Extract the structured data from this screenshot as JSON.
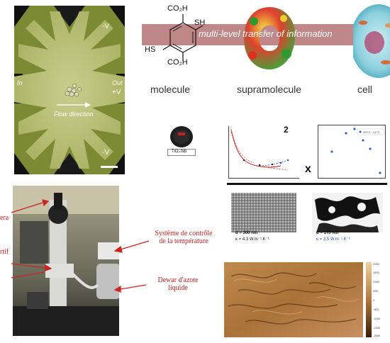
{
  "chip": {
    "label_in": "In",
    "label_out": "Out",
    "label_flow": "Flow direction",
    "voltages": [
      "-V",
      "+V",
      "-V"
    ]
  },
  "molecule": {
    "banner": "multi-level transfer of information",
    "captions": [
      "molecule",
      "supramolecule",
      "cell"
    ],
    "groups": [
      "CO₂H",
      "SH",
      "HS",
      "CO₂H"
    ]
  },
  "plots": {
    "sample_label": "TiO₂:Nb",
    "panel_number": "2",
    "cross": "x",
    "legend": "800 K - S170"
  },
  "sem": {
    "left_d": "d = 300 nm",
    "left_k": "κ = 4.3 W.m⁻¹.K⁻¹",
    "right_d": "d = 170 nm",
    "right_k": "κ = 3.5 W.m⁻¹.K⁻¹"
  },
  "microscope": {
    "label_camera": "era",
    "label_rtif": "rtif",
    "label_temp": "Système de contrôle de la température",
    "label_dewar": "Dewar d'azote liquide"
  },
  "afm": {
    "colorbar_ticks": [
      "2000",
      "1500",
      "1000",
      "500",
      "0",
      "-500",
      "-1000",
      "-1500",
      "-2000"
    ]
  },
  "colors": {
    "chip_bg": "#6b7a2a",
    "band": "#b87a7a",
    "label_red": "#cc2222",
    "afm": "#b8834a"
  }
}
